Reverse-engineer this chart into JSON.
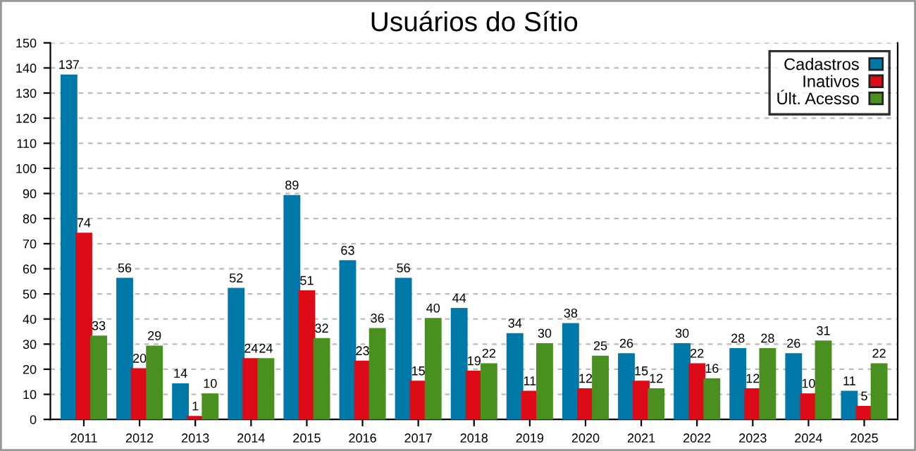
{
  "chart_data": {
    "type": "bar",
    "title": "Usuários do Sítio",
    "categories": [
      "2011",
      "2012",
      "2013",
      "2014",
      "2015",
      "2016",
      "2017",
      "2018",
      "2019",
      "2020",
      "2021",
      "2022",
      "2023",
      "2024",
      "2025"
    ],
    "series": [
      {
        "name": "Cadastros",
        "color": "#0079a8",
        "values": [
          137,
          56,
          14,
          52,
          89,
          63,
          56,
          44,
          34,
          38,
          26,
          30,
          28,
          26,
          11
        ]
      },
      {
        "name": "Inativos",
        "color": "#dd0a17",
        "values": [
          74,
          20,
          1,
          24,
          51,
          23,
          15,
          19,
          11,
          12,
          15,
          22,
          12,
          10,
          5
        ]
      },
      {
        "name": "Últ. Acesso",
        "color": "#4a9020",
        "values": [
          33,
          29,
          10,
          24,
          32,
          36,
          40,
          22,
          30,
          25,
          12,
          16,
          28,
          31,
          22
        ]
      }
    ],
    "ylim": [
      0,
      150
    ],
    "yticks": [
      0,
      10,
      20,
      30,
      40,
      50,
      60,
      70,
      80,
      90,
      100,
      110,
      120,
      130,
      140,
      150
    ],
    "grid": "y",
    "legend": "top right",
    "data_labels": true
  }
}
